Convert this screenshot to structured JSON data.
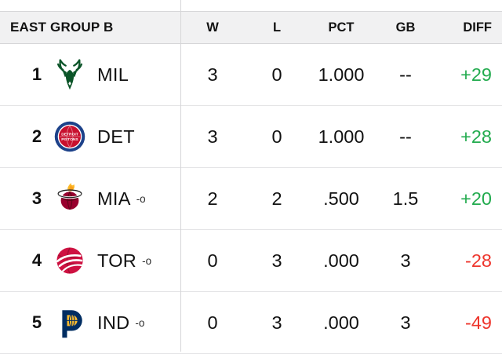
{
  "colors": {
    "positive": "#22ab4e",
    "negative": "#ee352c",
    "header_bg": "#f1f1f2",
    "border": "#d6d6d8",
    "row_border": "#e4e4e6"
  },
  "logo_colors": {
    "bucks_green": "#0b5428",
    "pistons_blue": "#1d428a",
    "pistons_red": "#c8102e",
    "heat_red": "#98002e",
    "heat_flame_yellow": "#fdb927",
    "heat_flame_orange": "#f9a01b",
    "raptors_red": "#ce1141",
    "pacers_navy": "#002d62",
    "pacers_gold": "#fdbb30"
  },
  "logos": {
    "pistons_text_top": "DETROIT",
    "pistons_text_bottom": "PISTONS"
  },
  "table": {
    "group_label": "EAST GROUP B",
    "columns": [
      "W",
      "L",
      "PCT",
      "GB",
      "DIFF"
    ],
    "rows": [
      {
        "rank": "1",
        "team": "MIL",
        "suffix": "",
        "logo": "bucks-logo",
        "w": "3",
        "l": "0",
        "pct": "1.000",
        "gb": "--",
        "diff": "+29",
        "diff_positive": true
      },
      {
        "rank": "2",
        "team": "DET",
        "suffix": "",
        "logo": "pistons-logo",
        "w": "3",
        "l": "0",
        "pct": "1.000",
        "gb": "--",
        "diff": "+28",
        "diff_positive": true
      },
      {
        "rank": "3",
        "team": "MIA",
        "suffix": "-o",
        "logo": "heat-logo",
        "w": "2",
        "l": "2",
        "pct": ".500",
        "gb": "1.5",
        "diff": "+20",
        "diff_positive": true
      },
      {
        "rank": "4",
        "team": "TOR",
        "suffix": "-o",
        "logo": "raptors-logo",
        "w": "0",
        "l": "3",
        "pct": ".000",
        "gb": "3",
        "diff": "-28",
        "diff_positive": false
      },
      {
        "rank": "5",
        "team": "IND",
        "suffix": "-o",
        "logo": "pacers-logo",
        "w": "0",
        "l": "3",
        "pct": ".000",
        "gb": "3",
        "diff": "-49",
        "diff_positive": false
      }
    ]
  }
}
